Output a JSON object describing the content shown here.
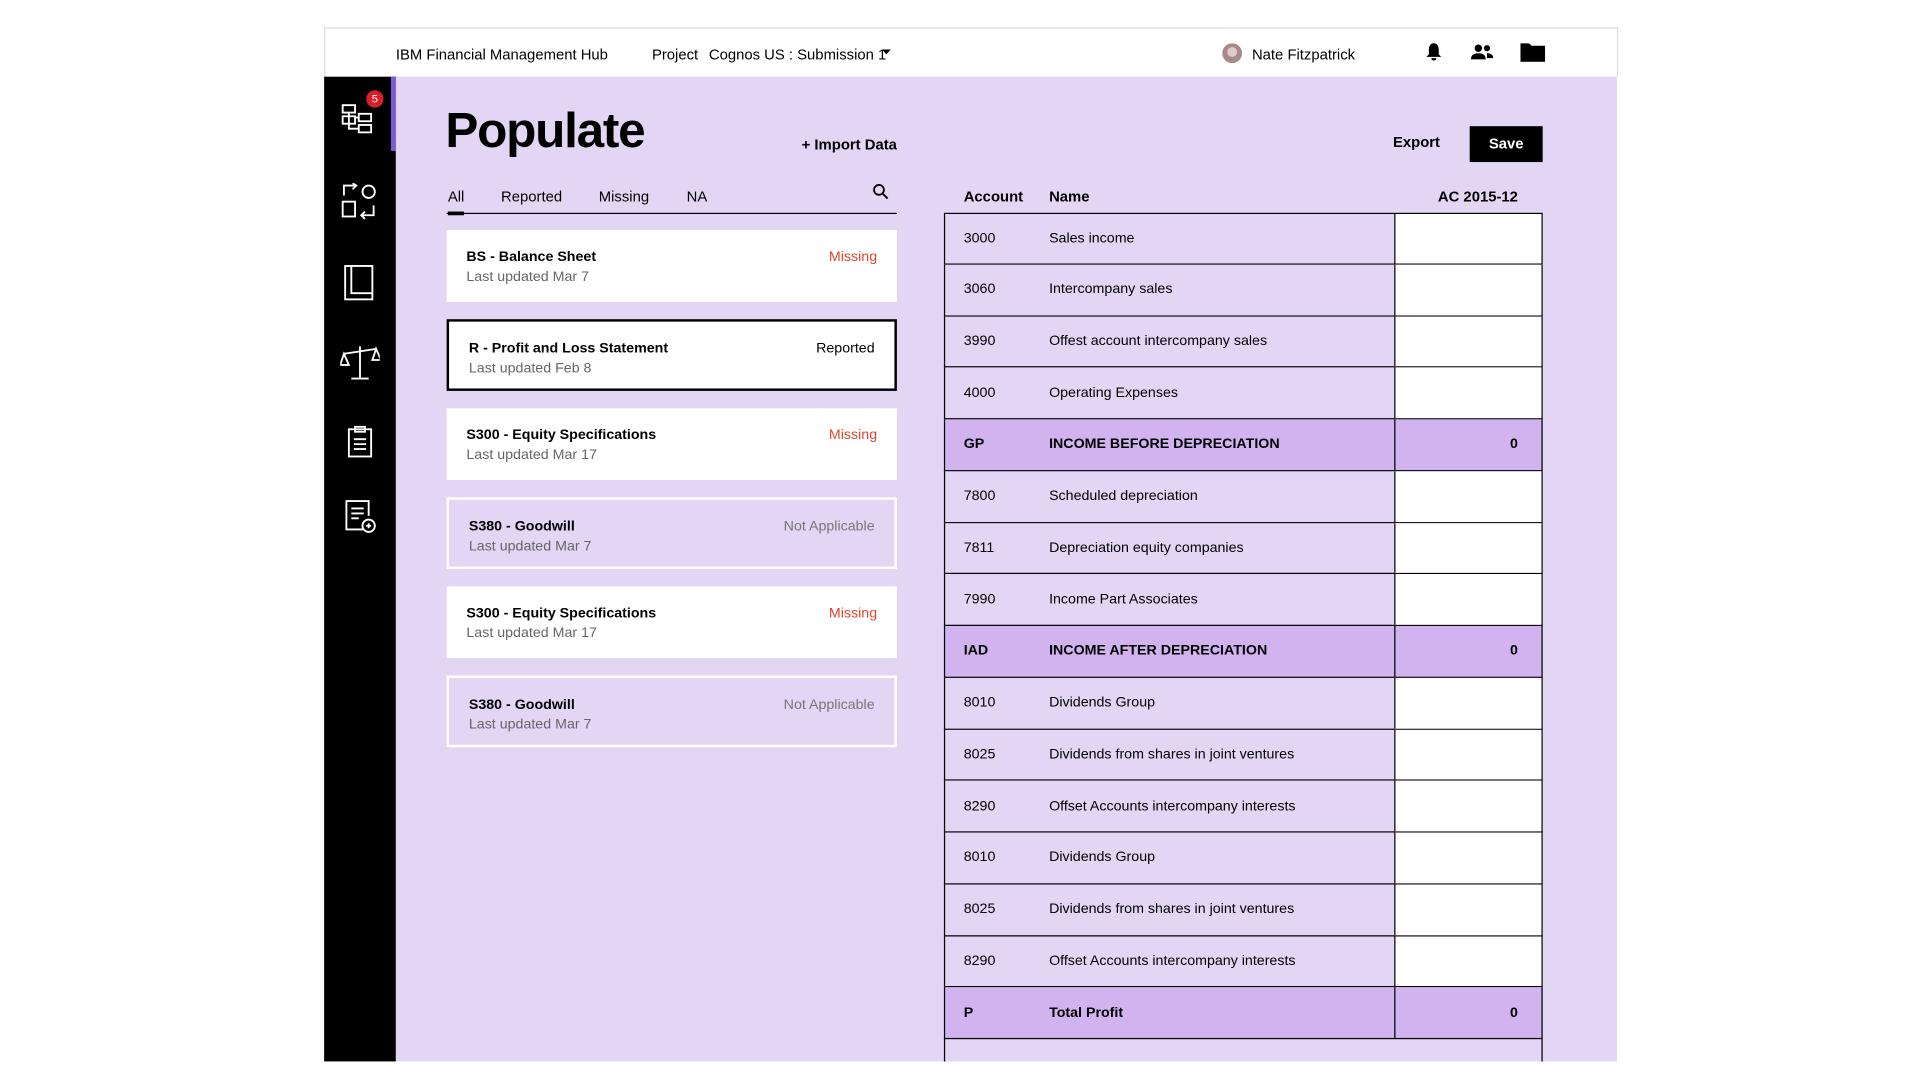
{
  "header": {
    "product": "IBM Financial Management Hub",
    "project_label": "Project",
    "project": "Cognos US : Submission 1",
    "user": "Nate Fitzpatrick"
  },
  "sidebar": {
    "badge": "5"
  },
  "page": {
    "title": "Populate",
    "import": "+ Import Data",
    "export": "Export",
    "save": "Save"
  },
  "tabs": [
    "All",
    "Reported",
    "Missing",
    "NA"
  ],
  "cards": [
    {
      "title": "BS - Balance Sheet",
      "updated": "Last updated  Mar 7",
      "status": "Missing"
    },
    {
      "title": "R - Profit and Loss Statement",
      "updated": "Last updated  Feb 8",
      "status": "Reported"
    },
    {
      "title": "S300 - Equity Specifications",
      "updated": "Last updated  Mar 17",
      "status": "Missing"
    },
    {
      "title": "S380 - Goodwill",
      "updated": "Last updated Mar 7",
      "status": "Not Applicable"
    },
    {
      "title": "S300 - Equity Specifications",
      "updated": "Last updated  Mar 17",
      "status": "Missing"
    },
    {
      "title": "S380 - Goodwill",
      "updated": "Last updated Mar 7",
      "status": "Not Applicable"
    }
  ],
  "table": {
    "columns": [
      "Account",
      "Name",
      "AC 2015-12"
    ],
    "rows": [
      [
        "3000",
        "Sales income",
        ""
      ],
      [
        "3060",
        "Intercompany sales",
        ""
      ],
      [
        "3990",
        "Offest account intercompany sales",
        ""
      ],
      [
        "4000",
        "Operating Expenses",
        ""
      ],
      [
        "GP",
        "INCOME BEFORE DEPRECIATION",
        "0"
      ],
      [
        "7800",
        "Scheduled depreciation",
        ""
      ],
      [
        "7811",
        "Depreciation equity companies",
        ""
      ],
      [
        "7990",
        "Income Part Associates",
        ""
      ],
      [
        "IAD",
        "INCOME AFTER DEPRECIATION",
        "0"
      ],
      [
        "8010",
        "Dividends Group",
        ""
      ],
      [
        "8025",
        "Dividends from shares in joint ventures",
        ""
      ],
      [
        "8290",
        "Offset Accounts intercompany interests",
        ""
      ],
      [
        "8010",
        "Dividends Group",
        ""
      ],
      [
        "8025",
        "Dividends from shares in joint ventures",
        ""
      ],
      [
        "8290",
        "Offset Accounts intercompany interests",
        ""
      ],
      [
        "P",
        "Total Profit",
        "0"
      ]
    ]
  }
}
